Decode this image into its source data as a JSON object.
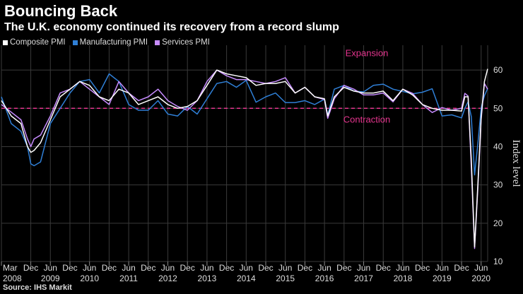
{
  "header": {
    "title": "Bouncing Back",
    "subtitle": "The U.K. economy continued its recovery from a record slump"
  },
  "source": "Source: IHS Markit",
  "colors": {
    "composite": "#ffffff",
    "manufacturing": "#2f7fd6",
    "services": "#c78cff",
    "threshold": "#e5358e",
    "grid": "#3a3a3a"
  },
  "chart_data": {
    "type": "line",
    "title": "Bouncing Back",
    "subtitle": "The U.K. economy continued its recovery from a record slump",
    "ylabel": "Index level",
    "xlabel": "",
    "ylim": [
      10,
      65
    ],
    "yticks": [
      10,
      20,
      30,
      40,
      50,
      60
    ],
    "xlim": [
      "2008-03",
      "2020-08"
    ],
    "grid": true,
    "legend_position": "top-left",
    "threshold": {
      "value": 50,
      "upper_label": "Expansion",
      "lower_label": "Contraction"
    },
    "x_tick_labels": [
      {
        "month": "Mar",
        "year": "2008",
        "date": "2008-03"
      },
      {
        "month": "Dec",
        "year": "",
        "date": "2008-12"
      },
      {
        "month": "Jun",
        "year": "2009",
        "date": "2009-06"
      },
      {
        "month": "Dec",
        "year": "",
        "date": "2009-12"
      },
      {
        "month": "Jun",
        "year": "2010",
        "date": "2010-06"
      },
      {
        "month": "Dec",
        "year": "",
        "date": "2010-12"
      },
      {
        "month": "Jun",
        "year": "2011",
        "date": "2011-06"
      },
      {
        "month": "Dec",
        "year": "",
        "date": "2011-12"
      },
      {
        "month": "Jun",
        "year": "2012",
        "date": "2012-06"
      },
      {
        "month": "Dec",
        "year": "",
        "date": "2012-12"
      },
      {
        "month": "Jun",
        "year": "2013",
        "date": "2013-06"
      },
      {
        "month": "Dec",
        "year": "",
        "date": "2013-12"
      },
      {
        "month": "Jun",
        "year": "2014",
        "date": "2014-06"
      },
      {
        "month": "Dec",
        "year": "",
        "date": "2014-12"
      },
      {
        "month": "Jun",
        "year": "2015",
        "date": "2015-06"
      },
      {
        "month": "Dec",
        "year": "",
        "date": "2015-12"
      },
      {
        "month": "Jun",
        "year": "2016",
        "date": "2016-06"
      },
      {
        "month": "Dec",
        "year": "",
        "date": "2016-12"
      },
      {
        "month": "Jun",
        "year": "2017",
        "date": "2017-06"
      },
      {
        "month": "Dec",
        "year": "",
        "date": "2017-12"
      },
      {
        "month": "Jun",
        "year": "2018",
        "date": "2018-06"
      },
      {
        "month": "Dec",
        "year": "",
        "date": "2018-12"
      },
      {
        "month": "Jun",
        "year": "2019",
        "date": "2019-06"
      },
      {
        "month": "Dec",
        "year": "",
        "date": "2019-12"
      },
      {
        "month": "Jun",
        "year": "2020",
        "date": "2020-06"
      }
    ],
    "series": [
      {
        "name": "Composite PMI",
        "key": "composite",
        "points": [
          [
            "2008-03",
            52
          ],
          [
            "2008-06",
            48
          ],
          [
            "2008-09",
            46
          ],
          [
            "2008-11",
            40
          ],
          [
            "2008-12",
            38.5
          ],
          [
            "2009-01",
            39
          ],
          [
            "2009-03",
            41
          ],
          [
            "2009-06",
            47
          ],
          [
            "2009-09",
            53
          ],
          [
            "2009-12",
            55
          ],
          [
            "2010-03",
            57
          ],
          [
            "2010-06",
            56
          ],
          [
            "2010-09",
            53
          ],
          [
            "2010-12",
            52
          ],
          [
            "2011-03",
            55
          ],
          [
            "2011-06",
            54
          ],
          [
            "2011-09",
            51
          ],
          [
            "2011-12",
            52
          ],
          [
            "2012-03",
            53
          ],
          [
            "2012-06",
            51
          ],
          [
            "2012-09",
            50
          ],
          [
            "2012-12",
            50.5
          ],
          [
            "2013-03",
            52
          ],
          [
            "2013-06",
            56
          ],
          [
            "2013-09",
            60
          ],
          [
            "2013-12",
            59
          ],
          [
            "2014-03",
            58.5
          ],
          [
            "2014-06",
            58
          ],
          [
            "2014-09",
            56
          ],
          [
            "2014-12",
            56.5
          ],
          [
            "2015-03",
            56.5
          ],
          [
            "2015-06",
            57
          ],
          [
            "2015-09",
            54
          ],
          [
            "2015-12",
            55.5
          ],
          [
            "2016-03",
            53
          ],
          [
            "2016-06",
            52.5
          ],
          [
            "2016-07",
            48
          ],
          [
            "2016-09",
            53
          ],
          [
            "2016-12",
            55.5
          ],
          [
            "2017-03",
            54.5
          ],
          [
            "2017-06",
            54
          ],
          [
            "2017-09",
            54
          ],
          [
            "2017-12",
            54.5
          ],
          [
            "2018-03",
            52
          ],
          [
            "2018-06",
            55
          ],
          [
            "2018-09",
            53.5
          ],
          [
            "2018-12",
            51
          ],
          [
            "2019-03",
            50
          ],
          [
            "2019-06",
            49.5
          ],
          [
            "2019-09",
            49.5
          ],
          [
            "2019-12",
            49.3
          ],
          [
            "2020-01",
            53
          ],
          [
            "2020-02",
            53
          ],
          [
            "2020-03",
            36.5
          ],
          [
            "2020-04",
            13.8
          ],
          [
            "2020-05",
            30
          ],
          [
            "2020-06",
            47.7
          ],
          [
            "2020-07",
            57
          ],
          [
            "2020-08",
            60.3
          ]
        ]
      },
      {
        "name": "Manufacturing PMI",
        "key": "manufacturing",
        "points": [
          [
            "2008-03",
            53
          ],
          [
            "2008-06",
            46
          ],
          [
            "2008-09",
            44
          ],
          [
            "2008-11",
            40
          ],
          [
            "2008-12",
            35.5
          ],
          [
            "2009-01",
            35
          ],
          [
            "2009-03",
            36
          ],
          [
            "2009-06",
            46
          ],
          [
            "2009-09",
            50
          ],
          [
            "2009-12",
            54
          ],
          [
            "2010-03",
            57
          ],
          [
            "2010-06",
            57.5
          ],
          [
            "2010-09",
            54
          ],
          [
            "2010-12",
            59
          ],
          [
            "2011-03",
            57
          ],
          [
            "2011-06",
            51
          ],
          [
            "2011-09",
            49.5
          ],
          [
            "2011-12",
            49.5
          ],
          [
            "2012-03",
            52
          ],
          [
            "2012-06",
            48.5
          ],
          [
            "2012-09",
            48
          ],
          [
            "2012-12",
            50.5
          ],
          [
            "2013-03",
            48.5
          ],
          [
            "2013-06",
            52.5
          ],
          [
            "2013-09",
            56.5
          ],
          [
            "2013-12",
            57
          ],
          [
            "2014-03",
            55.5
          ],
          [
            "2014-06",
            57.3
          ],
          [
            "2014-09",
            51.6
          ],
          [
            "2014-12",
            53
          ],
          [
            "2015-03",
            54
          ],
          [
            "2015-06",
            51.5
          ],
          [
            "2015-09",
            51.5
          ],
          [
            "2015-12",
            52
          ],
          [
            "2016-03",
            51
          ],
          [
            "2016-06",
            52.4
          ],
          [
            "2016-07",
            48.2
          ],
          [
            "2016-09",
            55
          ],
          [
            "2016-12",
            56
          ],
          [
            "2017-03",
            54.5
          ],
          [
            "2017-06",
            54.3
          ],
          [
            "2017-09",
            56
          ],
          [
            "2017-12",
            56.3
          ],
          [
            "2018-03",
            55
          ],
          [
            "2018-06",
            54.4
          ],
          [
            "2018-09",
            53.8
          ],
          [
            "2018-12",
            54.2
          ],
          [
            "2019-03",
            55.1
          ],
          [
            "2019-06",
            48
          ],
          [
            "2019-09",
            48.3
          ],
          [
            "2019-12",
            47.5
          ],
          [
            "2020-01",
            50
          ],
          [
            "2020-02",
            51.7
          ],
          [
            "2020-03",
            47.8
          ],
          [
            "2020-04",
            32.6
          ],
          [
            "2020-05",
            40.7
          ],
          [
            "2020-06",
            50.1
          ],
          [
            "2020-07",
            53.3
          ],
          [
            "2020-08",
            55.2
          ]
        ]
      },
      {
        "name": "Services PMI",
        "key": "services",
        "points": [
          [
            "2008-03",
            51
          ],
          [
            "2008-06",
            49
          ],
          [
            "2008-09",
            47
          ],
          [
            "2008-11",
            42
          ],
          [
            "2008-12",
            40
          ],
          [
            "2009-01",
            42
          ],
          [
            "2009-03",
            43
          ],
          [
            "2009-06",
            48
          ],
          [
            "2009-09",
            54
          ],
          [
            "2009-12",
            55
          ],
          [
            "2010-03",
            57
          ],
          [
            "2010-06",
            55
          ],
          [
            "2010-09",
            53
          ],
          [
            "2010-12",
            51
          ],
          [
            "2011-03",
            57
          ],
          [
            "2011-06",
            54
          ],
          [
            "2011-09",
            52
          ],
          [
            "2011-12",
            53
          ],
          [
            "2012-03",
            55
          ],
          [
            "2012-06",
            52
          ],
          [
            "2012-09",
            50.5
          ],
          [
            "2012-12",
            49.5
          ],
          [
            "2013-03",
            52
          ],
          [
            "2013-06",
            57
          ],
          [
            "2013-09",
            60
          ],
          [
            "2013-12",
            58.5
          ],
          [
            "2014-03",
            57.5
          ],
          [
            "2014-06",
            57.5
          ],
          [
            "2014-09",
            57
          ],
          [
            "2014-12",
            56.5
          ],
          [
            "2015-03",
            57
          ],
          [
            "2015-06",
            58
          ],
          [
            "2015-09",
            54
          ],
          [
            "2015-12",
            55.5
          ],
          [
            "2016-03",
            53
          ],
          [
            "2016-06",
            52.3
          ],
          [
            "2016-07",
            47.4
          ],
          [
            "2016-09",
            52.5
          ],
          [
            "2016-12",
            56
          ],
          [
            "2017-03",
            55
          ],
          [
            "2017-06",
            53.5
          ],
          [
            "2017-09",
            53.5
          ],
          [
            "2017-12",
            54
          ],
          [
            "2018-03",
            51.7
          ],
          [
            "2018-06",
            55
          ],
          [
            "2018-09",
            53.9
          ],
          [
            "2018-12",
            51
          ],
          [
            "2019-03",
            48.9
          ],
          [
            "2019-06",
            50.2
          ],
          [
            "2019-09",
            49.5
          ],
          [
            "2019-12",
            50
          ],
          [
            "2020-01",
            53.9
          ],
          [
            "2020-02",
            53.2
          ],
          [
            "2020-03",
            34.5
          ],
          [
            "2020-04",
            13.4
          ],
          [
            "2020-05",
            29
          ],
          [
            "2020-06",
            47.1
          ],
          [
            "2020-07",
            56.5
          ],
          [
            "2020-08",
            55
          ]
        ]
      }
    ]
  }
}
